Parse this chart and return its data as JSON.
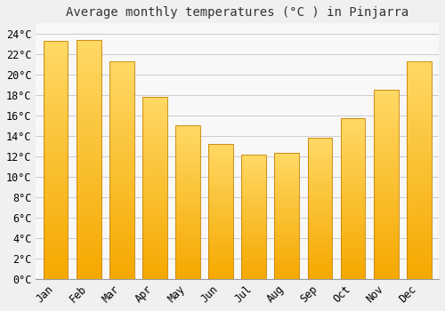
{
  "title": "Average monthly temperatures (°C ) in Pinjarra",
  "months": [
    "Jan",
    "Feb",
    "Mar",
    "Apr",
    "May",
    "Jun",
    "Jul",
    "Aug",
    "Sep",
    "Oct",
    "Nov",
    "Dec"
  ],
  "values": [
    23.3,
    23.4,
    21.3,
    17.8,
    15.0,
    13.2,
    12.2,
    12.3,
    13.8,
    15.7,
    18.5,
    21.3
  ],
  "bar_color_bottom": "#F5A800",
  "bar_color_top": "#FFD966",
  "bar_edge_color": "#C88000",
  "background_color": "#F0F0F0",
  "plot_bg_color": "#F8F8F8",
  "grid_color": "#CCCCCC",
  "ylim": [
    0,
    25
  ],
  "ytick_step": 2,
  "title_fontsize": 10,
  "tick_fontsize": 8.5,
  "font_family": "monospace"
}
